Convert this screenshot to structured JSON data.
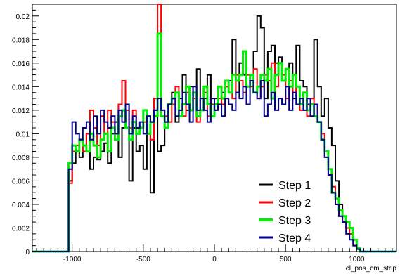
{
  "chart_data": {
    "type": "line",
    "step": true,
    "xlabel": "cl_pos_cm_strip",
    "ylabel": "",
    "xlim": [
      -1280,
      1280
    ],
    "ylim": [
      0,
      0.021
    ],
    "xticks": [
      -1000,
      -500,
      0,
      500,
      1000
    ],
    "xtick_labels": [
      "-1000",
      "-500",
      "0",
      "500",
      "1000"
    ],
    "yticks": [
      0,
      0.002,
      0.004,
      0.006,
      0.008,
      0.01,
      0.012,
      0.014,
      0.016,
      0.018,
      0.02
    ],
    "ytick_labels": [
      "0",
      "0.002",
      "0.004",
      "0.006",
      "0.008",
      "0.01",
      "0.012",
      "0.014",
      "0.016",
      "0.018",
      "0.02"
    ],
    "grid": false,
    "legend_position": "bottom-right",
    "x": [
      -1025,
      -1000,
      -975,
      -950,
      -925,
      -900,
      -875,
      -850,
      -825,
      -800,
      -775,
      -750,
      -725,
      -700,
      -675,
      -650,
      -625,
      -600,
      -575,
      -550,
      -525,
      -500,
      -475,
      -450,
      -425,
      -400,
      -375,
      -350,
      -325,
      -300,
      -275,
      -250,
      -225,
      -200,
      -175,
      -150,
      -125,
      -100,
      -75,
      -50,
      -25,
      0,
      25,
      50,
      75,
      100,
      125,
      150,
      175,
      200,
      225,
      250,
      275,
      300,
      325,
      350,
      375,
      400,
      425,
      450,
      475,
      500,
      525,
      550,
      575,
      600,
      625,
      650,
      675,
      700,
      725,
      750,
      775,
      800,
      825,
      850,
      875,
      900,
      925,
      950,
      975,
      1000
    ],
    "series": [
      {
        "name": "Step 1",
        "color": "#000000",
        "values": [
          0.006,
          0.0075,
          0.0085,
          0.008,
          0.009,
          0.01,
          0.007,
          0.008,
          0.0078,
          0.0085,
          0.0092,
          0.0075,
          0.01,
          0.011,
          0.008,
          0.0105,
          0.0125,
          0.006,
          0.0105,
          0.0085,
          0.009,
          0.007,
          0.0115,
          0.005,
          0.012,
          0.0085,
          0.009,
          0.011,
          0.0125,
          0.0135,
          0.011,
          0.013,
          0.015,
          0.012,
          0.014,
          0.0135,
          0.0155,
          0.012,
          0.013,
          0.015,
          0.0125,
          0.013,
          0.014,
          0.0135,
          0.0145,
          0.0145,
          0.018,
          0.0135,
          0.016,
          0.015,
          0.014,
          0.0145,
          0.017,
          0.02,
          0.019,
          0.013,
          0.017,
          0.0175,
          0.016,
          0.0165,
          0.0145,
          0.0155,
          0.016,
          0.013,
          0.0175,
          0.0145,
          0.014,
          0.0125,
          0.013,
          0.018,
          0.014,
          0.0115,
          0.013,
          0.0105,
          0.009,
          0.006,
          0.004,
          0.003,
          0.0025,
          0.002,
          0.001,
          0.0003
        ]
      },
      {
        "name": "Step 2",
        "color": "#ff0000",
        "values": [
          0.0058,
          0.0085,
          0.009,
          0.0095,
          0.0085,
          0.01,
          0.012,
          0.0105,
          0.009,
          0.0115,
          0.01,
          0.012,
          0.011,
          0.01,
          0.0125,
          0.0145,
          0.012,
          0.0105,
          0.012,
          0.01,
          0.0105,
          0.011,
          0.01,
          0.0095,
          0.013,
          0.021,
          0.012,
          0.0115,
          0.011,
          0.0125,
          0.014,
          0.012,
          0.0115,
          0.0135,
          0.012,
          0.013,
          0.011,
          0.012,
          0.0135,
          0.0115,
          0.0125,
          0.012,
          0.013,
          0.0125,
          0.014,
          0.0135,
          0.013,
          0.015,
          0.0145,
          0.0135,
          0.015,
          0.014,
          0.0155,
          0.013,
          0.014,
          0.015,
          0.0145,
          0.016,
          0.014,
          0.016,
          0.015,
          0.013,
          0.0145,
          0.0135,
          0.014,
          0.012,
          0.0135,
          0.0115,
          0.013,
          0.0125,
          0.011,
          0.01,
          0.008,
          0.0065,
          0.0055,
          0.004,
          0.003,
          0.0025,
          0.002,
          0.0015,
          0.0005,
          0.0002
        ]
      },
      {
        "name": "Step 3",
        "color": "#00ee00",
        "values": [
          0.0075,
          0.009,
          0.0085,
          0.0095,
          0.009,
          0.0085,
          0.01,
          0.009,
          0.008,
          0.0095,
          0.01,
          0.0085,
          0.0105,
          0.0095,
          0.0115,
          0.012,
          0.0105,
          0.0095,
          0.011,
          0.01,
          0.0105,
          0.012,
          0.01,
          0.011,
          0.0115,
          0.0185,
          0.0115,
          0.0105,
          0.0125,
          0.013,
          0.0135,
          0.0115,
          0.0125,
          0.014,
          0.012,
          0.0135,
          0.0115,
          0.012,
          0.014,
          0.0125,
          0.0115,
          0.0125,
          0.014,
          0.013,
          0.0145,
          0.0135,
          0.015,
          0.0145,
          0.015,
          0.017,
          0.014,
          0.015,
          0.0135,
          0.014,
          0.015,
          0.0145,
          0.0155,
          0.013,
          0.015,
          0.016,
          0.0145,
          0.0155,
          0.014,
          0.015,
          0.014,
          0.0125,
          0.0135,
          0.012,
          0.0125,
          0.0115,
          0.011,
          0.0095,
          0.0085,
          0.007,
          0.005,
          0.0045,
          0.0035,
          0.003,
          0.0025,
          0.002,
          0.001,
          0.0003
        ]
      },
      {
        "name": "Step 4",
        "color": "#00008b",
        "values": [
          0.007,
          0.011,
          0.01,
          0.0095,
          0.0105,
          0.011,
          0.0095,
          0.0115,
          0.01,
          0.012,
          0.011,
          0.0105,
          0.0115,
          0.01,
          0.012,
          0.011,
          0.0125,
          0.01,
          0.0115,
          0.0105,
          0.011,
          0.01,
          0.0115,
          0.011,
          0.012,
          0.013,
          0.012,
          0.011,
          0.0125,
          0.013,
          0.0115,
          0.012,
          0.0135,
          0.0125,
          0.011,
          0.014,
          0.012,
          0.013,
          0.012,
          0.011,
          0.013,
          0.012,
          0.0125,
          0.0115,
          0.013,
          0.0125,
          0.012,
          0.0135,
          0.013,
          0.014,
          0.0125,
          0.0145,
          0.0135,
          0.013,
          0.0145,
          0.0115,
          0.0125,
          0.0135,
          0.012,
          0.013,
          0.0125,
          0.014,
          0.012,
          0.0135,
          0.0125,
          0.013,
          0.012,
          0.013,
          0.0115,
          0.0125,
          0.011,
          0.0095,
          0.008,
          0.0065,
          0.005,
          0.004,
          0.003,
          0.0025,
          0.0015,
          0.001,
          0.0005,
          0.0002
        ]
      }
    ]
  }
}
